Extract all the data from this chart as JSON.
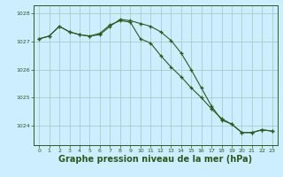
{
  "bg_color": "#cceeff",
  "line_color": "#2d5a1b",
  "grid_color": "#aacccc",
  "xlabel": "Graphe pression niveau de la mer (hPa)",
  "xlabel_fontsize": 7,
  "xlim": [
    -0.5,
    23.5
  ],
  "ylim": [
    1023.3,
    1028.3
  ],
  "yticks": [
    1024,
    1025,
    1026,
    1027,
    1028
  ],
  "xticks": [
    0,
    1,
    2,
    3,
    4,
    5,
    6,
    7,
    8,
    9,
    10,
    11,
    12,
    13,
    14,
    15,
    16,
    17,
    18,
    19,
    20,
    21,
    22,
    23
  ],
  "series1_x": [
    0,
    1,
    2,
    3,
    4,
    5,
    6,
    7,
    8,
    9,
    10,
    11,
    12,
    13,
    14,
    15,
    16,
    17,
    18,
    19,
    20,
    21,
    22,
    23
  ],
  "series1_y": [
    1027.1,
    1027.2,
    1027.55,
    1027.35,
    1027.25,
    1027.2,
    1027.3,
    1027.6,
    1027.75,
    1027.7,
    1027.1,
    1026.95,
    1026.5,
    1026.1,
    1025.75,
    1025.35,
    1025.0,
    1024.6,
    1024.25,
    1024.05,
    1023.75,
    1023.75,
    1023.85,
    1023.8
  ],
  "series2_x": [
    0,
    1,
    2,
    3,
    4,
    5,
    6,
    7,
    8,
    9,
    10,
    11,
    12,
    13,
    14,
    15,
    16,
    17,
    18,
    19,
    20,
    21,
    22,
    23
  ],
  "series2_y": [
    1027.1,
    1027.2,
    1027.55,
    1027.35,
    1027.25,
    1027.2,
    1027.25,
    1027.55,
    1027.8,
    1027.75,
    1027.65,
    1027.55,
    1027.35,
    1027.05,
    1026.6,
    1026.0,
    1025.35,
    1024.7,
    1024.2,
    1024.05,
    1023.75,
    1023.75,
    1023.85,
    1023.8
  ]
}
